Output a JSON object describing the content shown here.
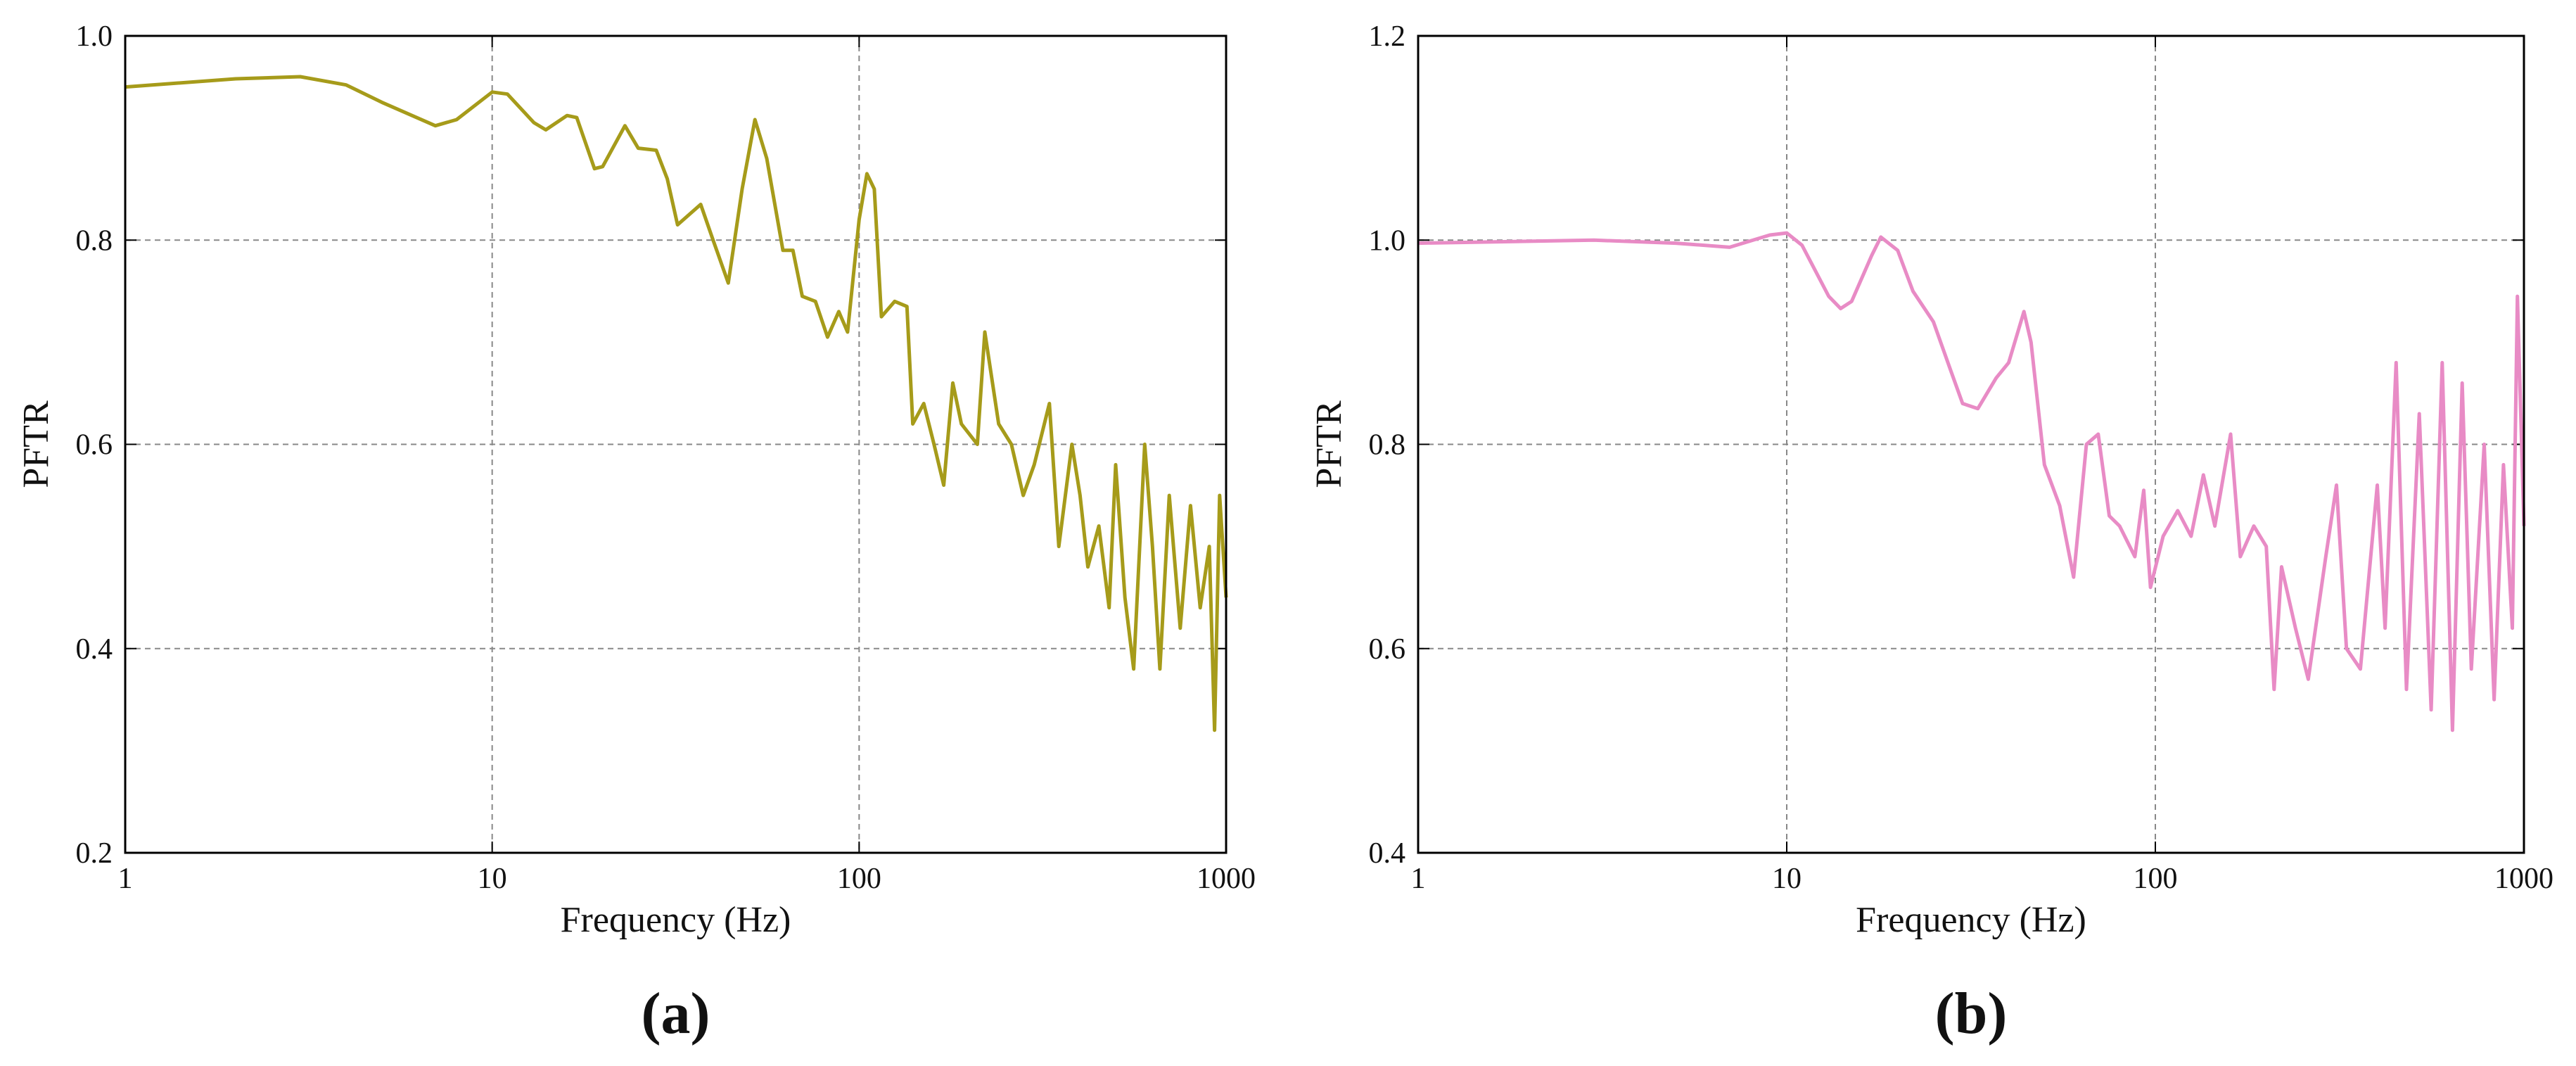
{
  "chart_data": [
    {
      "type": "line",
      "label": "(a)",
      "x_label": "Frequency (Hz)",
      "y_label": "PFTR",
      "xlog": true,
      "xlim": [
        1,
        1000
      ],
      "xticks": [
        1,
        10,
        100,
        1000
      ],
      "ylim": [
        0.2,
        1.0
      ],
      "yticks": [
        0.2,
        0.4,
        0.6,
        0.8,
        {
          "value": 1.0,
          "label": "1.0"
        }
      ],
      "grid": true,
      "x": [
        1,
        2,
        3,
        4,
        5,
        7,
        8,
        10,
        11,
        13,
        14,
        16,
        17,
        19,
        20,
        23,
        25,
        28,
        30,
        32,
        37,
        40,
        44,
        48,
        52,
        56,
        62,
        66,
        70,
        76,
        82,
        88,
        93,
        100,
        105,
        110,
        115,
        125,
        135,
        140,
        150,
        160,
        170,
        180,
        190,
        210,
        220,
        240,
        260,
        280,
        300,
        330,
        350,
        380,
        400,
        420,
        450,
        480,
        500,
        530,
        560,
        600,
        630,
        660,
        700,
        750,
        800,
        850,
        900,
        930,
        960,
        1000
      ],
      "series": [
        {
          "color": "#a69b1a",
          "values": [
            0.95,
            0.958,
            0.96,
            0.952,
            0.935,
            0.912,
            0.918,
            0.945,
            0.943,
            0.915,
            0.908,
            0.922,
            0.92,
            0.87,
            0.872,
            0.912,
            0.89,
            0.888,
            0.86,
            0.815,
            0.835,
            0.8,
            0.758,
            0.85,
            0.918,
            0.88,
            0.79,
            0.79,
            0.745,
            0.74,
            0.705,
            0.73,
            0.71,
            0.82,
            0.865,
            0.85,
            0.725,
            0.74,
            0.735,
            0.62,
            0.64,
            0.6,
            0.56,
            0.66,
            0.62,
            0.6,
            0.71,
            0.62,
            0.6,
            0.55,
            0.58,
            0.64,
            0.5,
            0.6,
            0.55,
            0.48,
            0.52,
            0.44,
            0.58,
            0.45,
            0.38,
            0.6,
            0.5,
            0.38,
            0.55,
            0.42,
            0.54,
            0.44,
            0.5,
            0.32,
            0.55,
            0.45
          ]
        }
      ]
    },
    {
      "type": "line",
      "label": "(b)",
      "x_label": "Frequency (Hz)",
      "y_label": "PFTR",
      "xlog": true,
      "xlim": [
        1,
        1000
      ],
      "xticks": [
        1,
        10,
        100,
        1000
      ],
      "ylim": [
        0.4,
        1.2
      ],
      "yticks": [
        0.4,
        0.6,
        0.8,
        {
          "value": 1.0,
          "label": "1.0"
        },
        1.2
      ],
      "grid": true,
      "x": [
        1,
        3,
        5,
        7,
        9,
        10,
        11,
        13,
        14,
        15,
        17,
        18,
        20,
        22,
        25,
        28,
        30,
        33,
        37,
        40,
        44,
        46,
        50,
        55,
        60,
        65,
        70,
        75,
        80,
        88,
        93,
        97,
        105,
        115,
        125,
        135,
        145,
        160,
        170,
        185,
        200,
        210,
        220,
        240,
        260,
        290,
        310,
        330,
        360,
        400,
        420,
        450,
        480,
        520,
        560,
        600,
        640,
        680,
        720,
        780,
        830,
        880,
        930,
        960,
        1000
      ],
      "series": [
        {
          "color": "#e88bc5",
          "values": [
            0.997,
            1.0,
            0.997,
            0.993,
            1.005,
            1.007,
            0.995,
            0.945,
            0.933,
            0.94,
            0.985,
            1.003,
            0.99,
            0.95,
            0.92,
            0.87,
            0.84,
            0.835,
            0.865,
            0.88,
            0.93,
            0.9,
            0.78,
            0.74,
            0.67,
            0.8,
            0.81,
            0.73,
            0.72,
            0.69,
            0.755,
            0.66,
            0.71,
            0.735,
            0.71,
            0.77,
            0.72,
            0.81,
            0.69,
            0.72,
            0.7,
            0.56,
            0.68,
            0.62,
            0.57,
            0.69,
            0.76,
            0.6,
            0.58,
            0.76,
            0.62,
            0.88,
            0.56,
            0.83,
            0.54,
            0.88,
            0.52,
            0.86,
            0.58,
            0.8,
            0.55,
            0.78,
            0.62,
            0.945,
            0.72
          ]
        }
      ]
    }
  ]
}
